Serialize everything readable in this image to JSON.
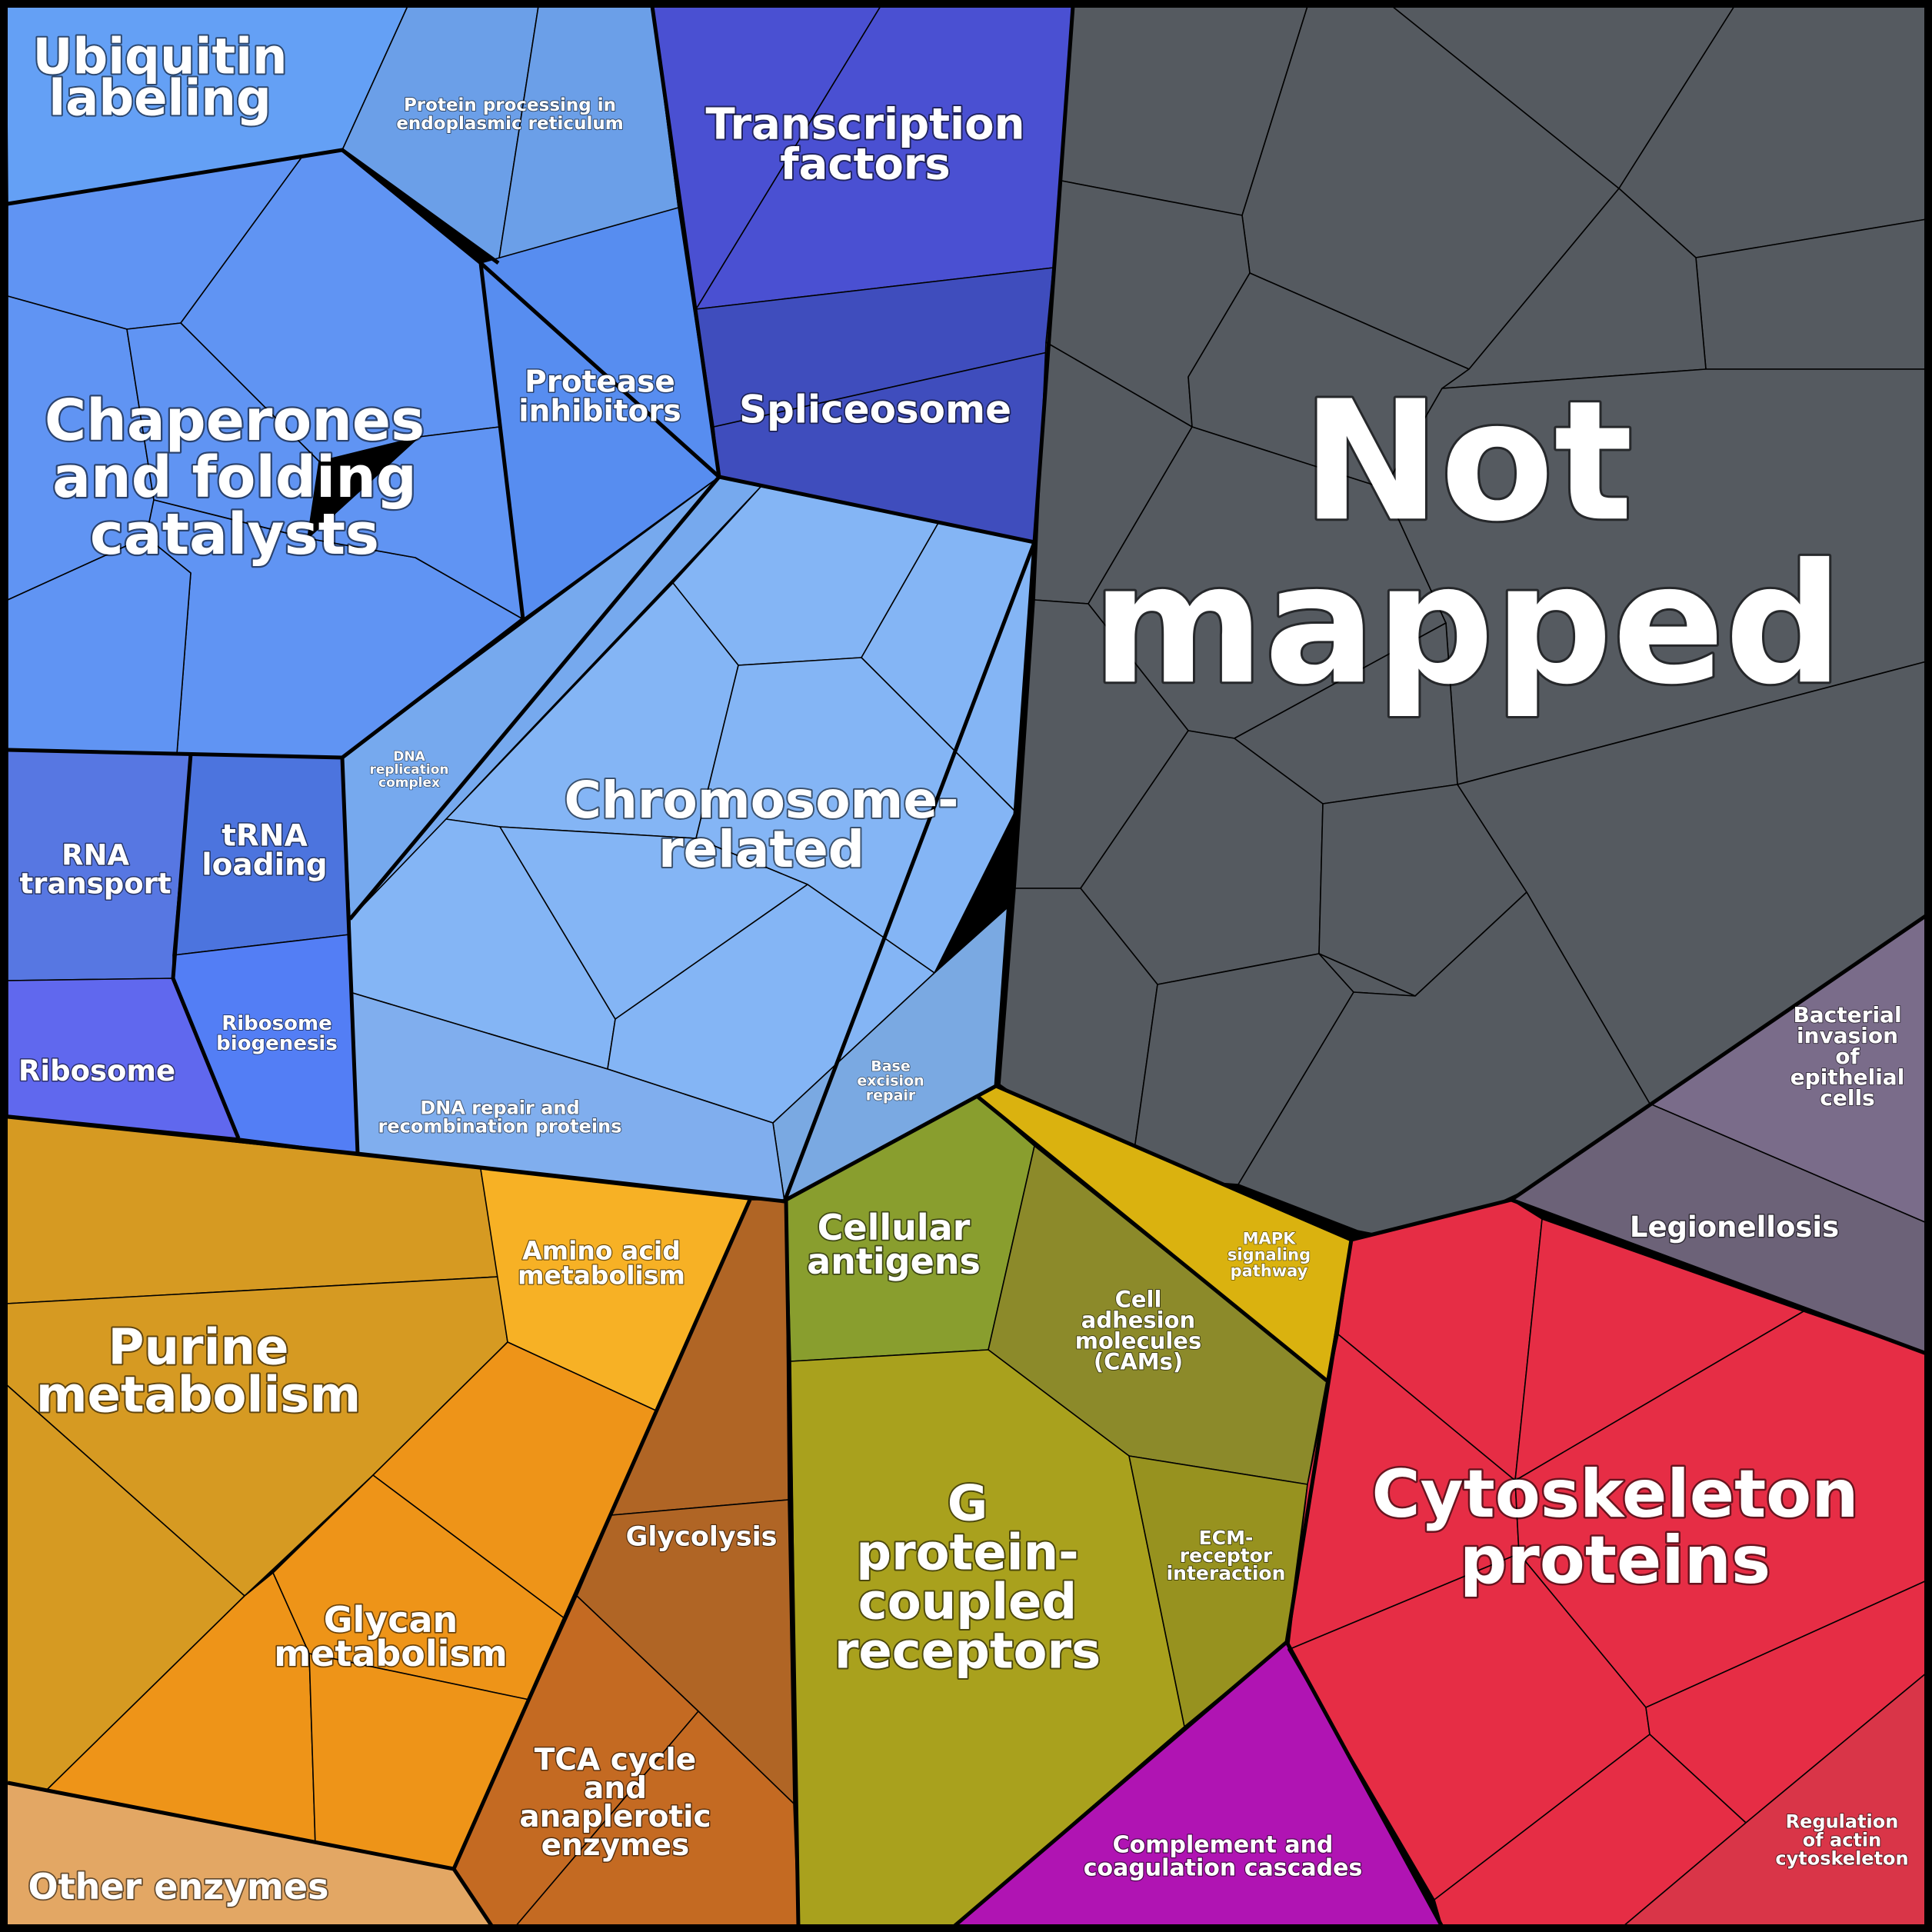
{
  "groups": [
    {
      "id": "ubiquitin",
      "label": [
        "Ubiquitin",
        "labeling"
      ],
      "color": "#64A0F5"
    },
    {
      "id": "protein-processing",
      "label": [
        "Protein processing in",
        "endoplasmic reticulum"
      ],
      "color": "#6B9FE8"
    },
    {
      "id": "transcription",
      "label": [
        "Transcription",
        "factors"
      ],
      "color": "#4A50D2"
    },
    {
      "id": "spliceosome",
      "label": [
        "Spliceosome"
      ],
      "color": "#3F4DBD"
    },
    {
      "id": "chaperones",
      "label": [
        "Chaperones",
        "and folding",
        "catalysts"
      ],
      "color": "#6094F3"
    },
    {
      "id": "protease",
      "label": [
        "Protease",
        "inhibitors"
      ],
      "color": "#578DF0"
    },
    {
      "id": "chromosome",
      "label": [
        "Chromosome-",
        "related"
      ],
      "color": "#84B5F5"
    },
    {
      "id": "dna-replication",
      "label": [
        "DNA",
        "replication",
        "complex"
      ],
      "color": "#76A9EE"
    },
    {
      "id": "dna-repair",
      "label": [
        "DNA repair and",
        "recombination proteins"
      ],
      "color": "#80AEEE"
    },
    {
      "id": "base-excision",
      "label": [
        "Base",
        "excision",
        "repair"
      ],
      "color": "#7AA9E2"
    },
    {
      "id": "rna-transport",
      "label": [
        "RNA",
        "transport"
      ],
      "color": "#5777E2"
    },
    {
      "id": "trna",
      "label": [
        "tRNA",
        "loading"
      ],
      "color": "#4C74DE"
    },
    {
      "id": "ribosome",
      "label": [
        "Ribosome"
      ],
      "color": "#6068EE"
    },
    {
      "id": "ribosome-biogenesis",
      "label": [
        "Ribosome",
        "biogenesis"
      ],
      "color": "#537EF5"
    },
    {
      "id": "not-mapped",
      "label": [
        "Not",
        "mapped"
      ],
      "color": "#555A60"
    },
    {
      "id": "bacterial",
      "label": [
        "Bacterial",
        "invasion",
        "of",
        "epithelial",
        "cells"
      ],
      "color": "#7A6C8A"
    },
    {
      "id": "legionellosis",
      "label": [
        "Legionellosis"
      ],
      "color": "#6C6278"
    },
    {
      "id": "purine",
      "label": [
        "Purine",
        "metabolism"
      ],
      "color": "#D69A22"
    },
    {
      "id": "amino-acid",
      "label": [
        "Amino acid",
        "metabolism"
      ],
      "color": "#F7B125"
    },
    {
      "id": "glycan",
      "label": [
        "Glycan",
        "metabolism"
      ],
      "color": "#EE9418"
    },
    {
      "id": "other-enzymes",
      "label": [
        "Other enzymes"
      ],
      "color": "#E3A764"
    },
    {
      "id": "glycolysis",
      "label": [
        "Glycolysis"
      ],
      "color": "#B06525"
    },
    {
      "id": "tca",
      "label": [
        "TCA cycle",
        "and",
        "anaplerotic",
        "enzymes"
      ],
      "color": "#C46A22"
    },
    {
      "id": "cellular-antigens",
      "label": [
        "Cellular",
        "antigens"
      ],
      "color": "#899E2E"
    },
    {
      "id": "mapk",
      "label": [
        "MAPK",
        "signaling",
        "pathway"
      ],
      "color": "#DAB20F"
    },
    {
      "id": "cams",
      "label": [
        "Cell",
        "adhesion",
        "molecules",
        "(CAMs)"
      ],
      "color": "#8C8A2A"
    },
    {
      "id": "gpcr",
      "label": [
        "G",
        "protein-",
        "coupled",
        "receptors"
      ],
      "color": "#A9A11D"
    },
    {
      "id": "ecm",
      "label": [
        "ECM-",
        "receptor",
        "interaction"
      ],
      "color": "#97921F"
    },
    {
      "id": "complement",
      "label": [
        "Complement and",
        "coagulation cascades"
      ],
      "color": "#B014B3"
    },
    {
      "id": "cytoskeleton",
      "label": [
        "Cytoskeleton",
        "proteins"
      ],
      "color": "#E62D45"
    },
    {
      "id": "actin",
      "label": [
        "Regulation",
        "of actin",
        "cytoskeleton"
      ],
      "color": "#D93548"
    }
  ]
}
